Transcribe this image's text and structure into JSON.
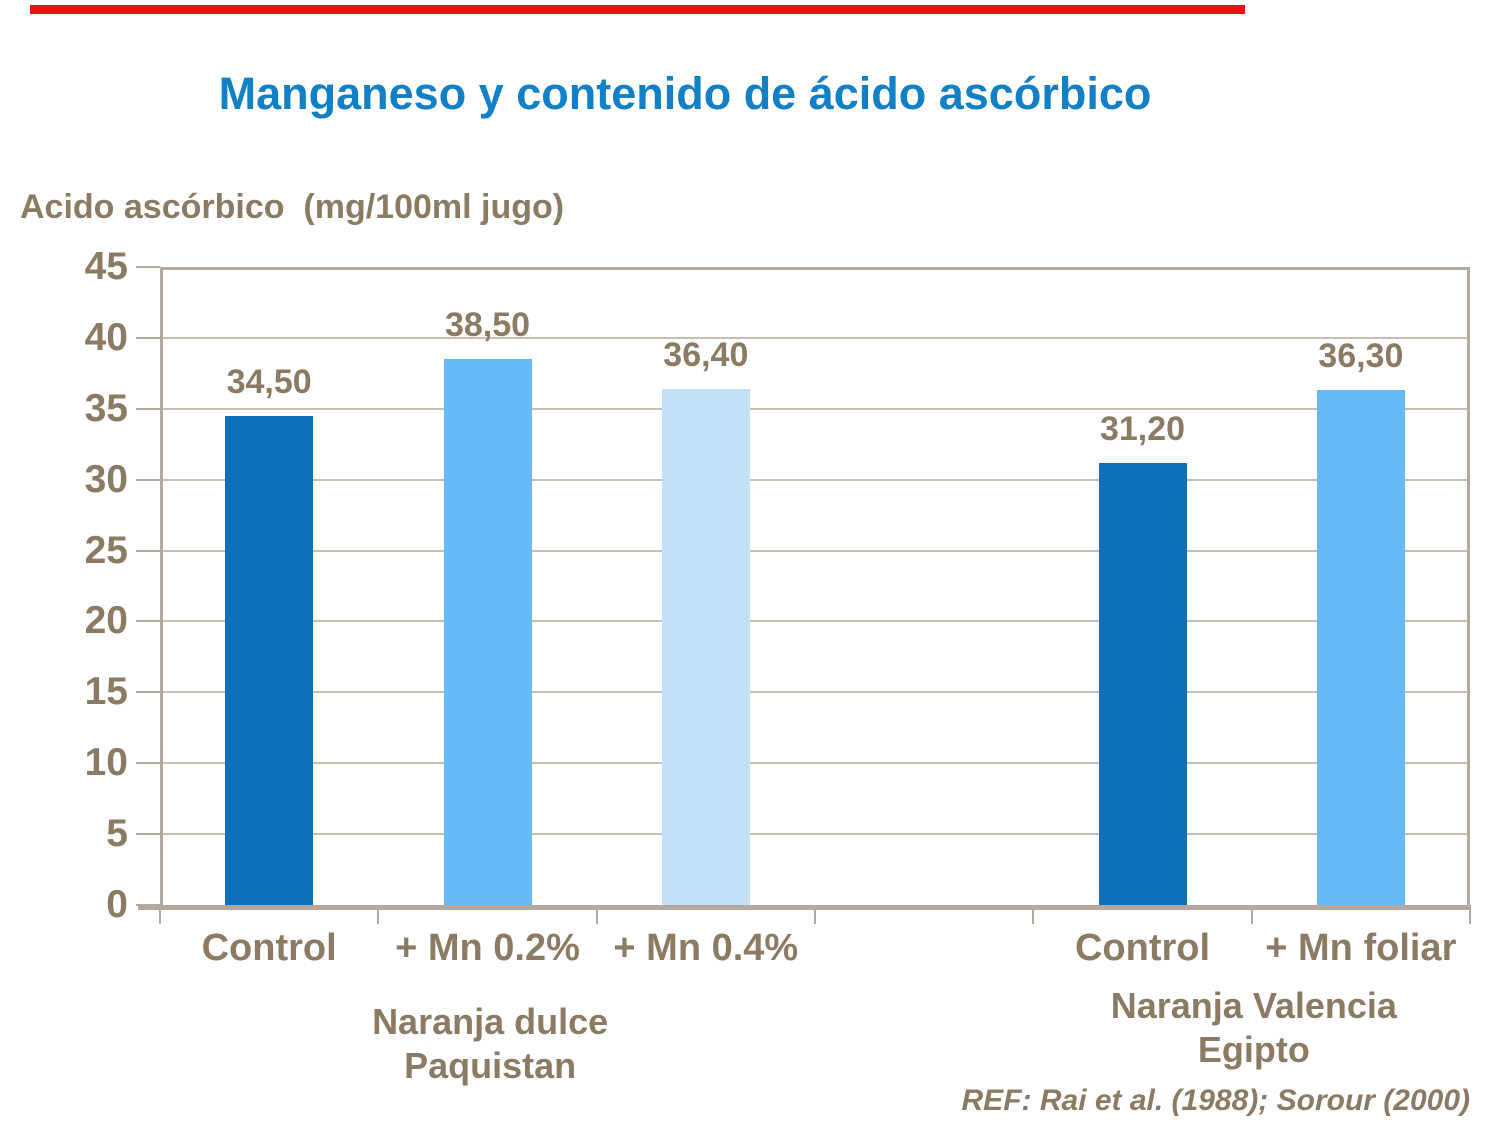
{
  "slide": {
    "title": "Manganeso y contenido de ácido ascórbico",
    "y_axis_title": "Acido ascórbico  (mg/100ml jugo)",
    "reference": "REF: Rai et al. (1988); Sorour (2000)"
  },
  "colors": {
    "accent_strip": "#EE1111",
    "title_blue": "#1180C6",
    "text_brown": "#8B7B64",
    "axis_line": "#B3A99E",
    "gridline": "#C6BEB2",
    "background": "#FFFFFF"
  },
  "chart_data": {
    "type": "bar",
    "title": "Manganeso y contenido de ácido ascórbico",
    "ylabel": "Acido ascórbico (mg/100ml jugo)",
    "xlabel": "",
    "ylim": [
      0,
      45
    ],
    "ytick_interval": 5,
    "grid": true,
    "legend": false,
    "categories": [
      "Control",
      "+ Mn 0.2%",
      "+ Mn 0.4%",
      "",
      "Control",
      "+ Mn foliar"
    ],
    "values": [
      34.5,
      38.5,
      36.4,
      null,
      31.2,
      36.3
    ],
    "value_labels": [
      "34,50",
      "38,50",
      "36,40",
      "",
      "31,20",
      "36,30"
    ],
    "bar_colors": [
      "#0D70B8",
      "#67B9F7",
      "#C3E0F6",
      "",
      "#0D70B8",
      "#67B9F7"
    ],
    "groups": [
      {
        "lines": [
          "Naranja dulce",
          "Paquistan"
        ],
        "center_pct": 25.2
      },
      {
        "lines": [
          "Naranja Valencia",
          "Egipto"
        ],
        "center_pct": 83.5
      }
    ]
  }
}
